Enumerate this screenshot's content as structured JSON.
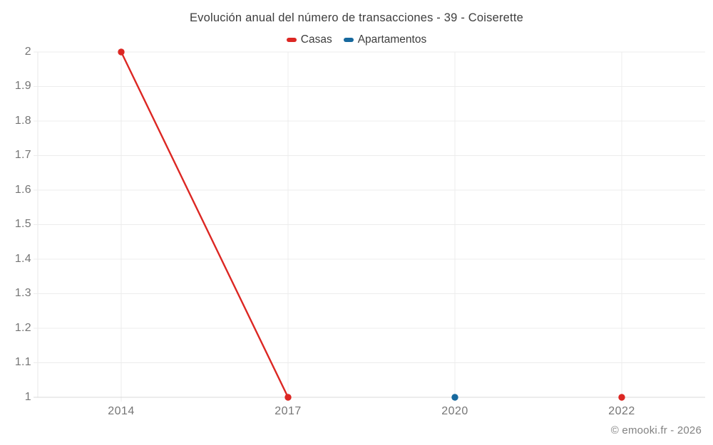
{
  "chart_data": {
    "type": "line",
    "title": "Evolución anual del número de transacciones - 39 - Coiserette",
    "categories": [
      "2014",
      "2017",
      "2020",
      "2022"
    ],
    "series": [
      {
        "name": "Casas",
        "color": "#dc2723",
        "values": [
          2,
          1,
          null,
          1
        ]
      },
      {
        "name": "Apartamentos",
        "color": "#17699e",
        "values": [
          null,
          null,
          1,
          null
        ]
      }
    ],
    "xlabel": "",
    "ylabel": "",
    "ylim": [
      1,
      2
    ],
    "yticks": [
      "1",
      "1.1",
      "1.2",
      "1.3",
      "1.4",
      "1.5",
      "1.6",
      "1.7",
      "1.8",
      "1.9",
      "2"
    ],
    "grid": true,
    "legend_position": "top"
  },
  "colors": {
    "grid": "#ececec",
    "axis_line": "#d9d9d9",
    "plot_edge": "#e9e9e9",
    "title_text": "#3d3d3d",
    "axis_text": "#757575",
    "watermark_text": "#828282"
  },
  "watermark": "© emooki.fr - 2026"
}
